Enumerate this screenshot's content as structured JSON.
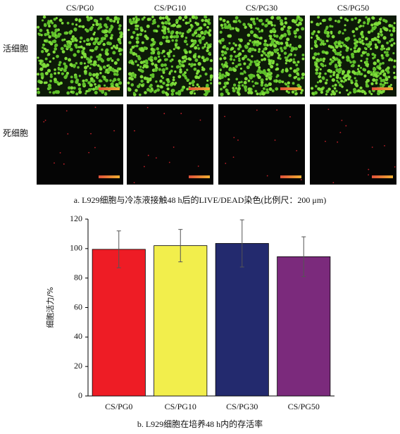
{
  "panel_a": {
    "columns": [
      "CS/PG0",
      "CS/PG10",
      "CS/PG30",
      "CS/PG50"
    ],
    "rows": [
      "活细胞",
      "死细胞"
    ],
    "caption": "a.  L929细胞与冷冻液接触48 h后的LIVE/DEAD染色(比例尺：200 μm)"
  },
  "chart_data": {
    "type": "bar",
    "categories": [
      "CS/PG0",
      "CS/PG10",
      "CS/PG30",
      "CS/PG50"
    ],
    "values": [
      99.5,
      102,
      103.5,
      94.5
    ],
    "errors": [
      12.5,
      11,
      16,
      13.5
    ],
    "colors": [
      "#ee1c25",
      "#f2ee4c",
      "#232a6e",
      "#7b2a7c"
    ],
    "ylabel": "细胞活力/%",
    "ylim": [
      0,
      120
    ],
    "yticks": [
      0,
      20,
      40,
      60,
      80,
      100,
      120
    ],
    "caption": "b.  L929细胞在培养48 h内的存活率"
  }
}
